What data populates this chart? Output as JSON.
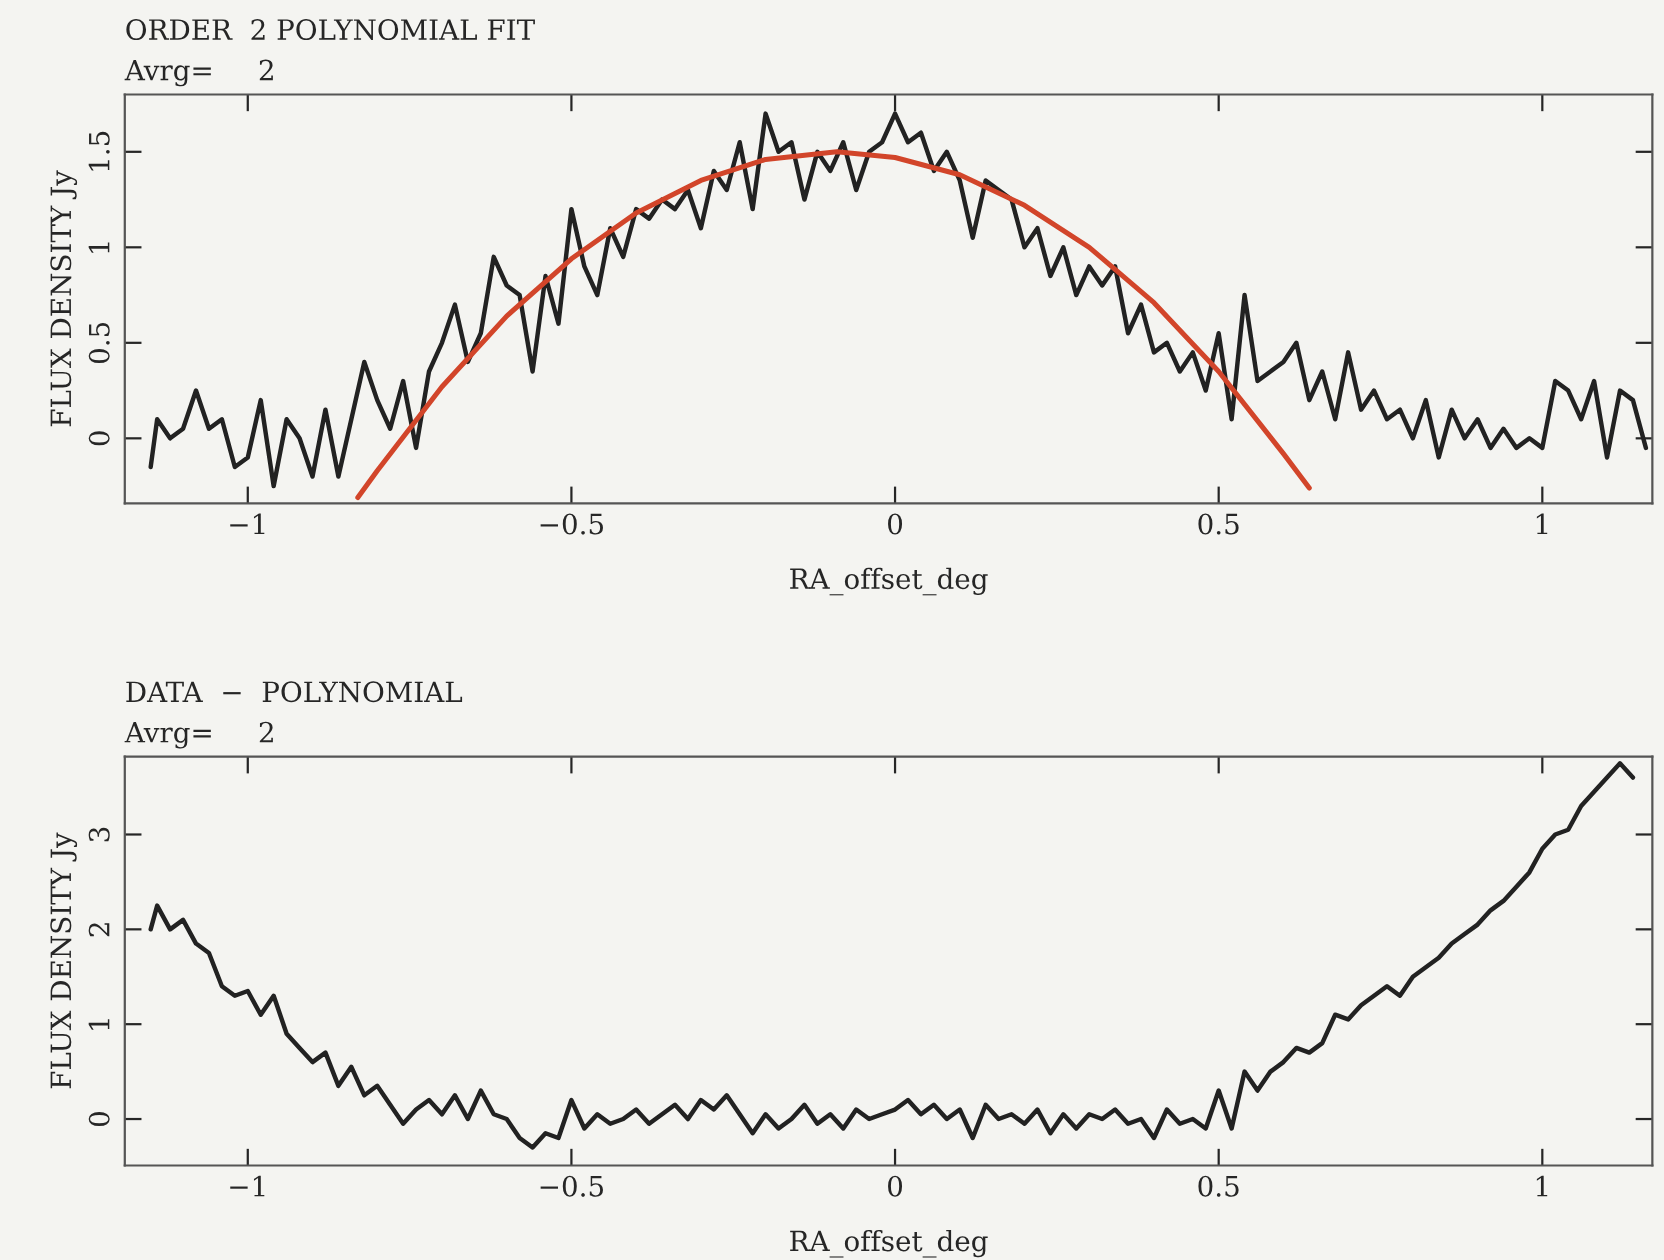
{
  "chart_data": [
    {
      "type": "line",
      "title": "ORDER  2 POLYNOMIAL FIT",
      "subtitle": "Avrg=     2",
      "xlabel": "RA_offset_deg",
      "ylabel": "FLUX DENSITY Jy",
      "xlim": [
        -1.19,
        1.17
      ],
      "ylim": [
        -0.34,
        1.8
      ],
      "xticks": [
        -1,
        -0.5,
        0,
        0.5,
        1
      ],
      "yticks": [
        0,
        0.5,
        1,
        1.5
      ],
      "grid": false,
      "legend": false,
      "marker": "none",
      "line_style": "solid",
      "series": [
        {
          "color": "#222222",
          "x": [
            -1.15,
            -1.14,
            -1.12,
            -1.1,
            -1.08,
            -1.06,
            -1.04,
            -1.02,
            -1.0,
            -0.98,
            -0.96,
            -0.94,
            -0.92,
            -0.9,
            -0.88,
            -0.86,
            -0.84,
            -0.82,
            -0.8,
            -0.78,
            -0.76,
            -0.74,
            -0.72,
            -0.7,
            -0.68,
            -0.66,
            -0.64,
            -0.62,
            -0.6,
            -0.58,
            -0.56,
            -0.54,
            -0.52,
            -0.5,
            -0.48,
            -0.46,
            -0.44,
            -0.42,
            -0.4,
            -0.38,
            -0.36,
            -0.34,
            -0.32,
            -0.3,
            -0.28,
            -0.26,
            -0.24,
            -0.22,
            -0.2,
            -0.18,
            -0.16,
            -0.14,
            -0.12,
            -0.1,
            -0.08,
            -0.06,
            -0.04,
            -0.02,
            0.0,
            0.02,
            0.04,
            0.06,
            0.08,
            0.1,
            0.12,
            0.14,
            0.16,
            0.18,
            0.2,
            0.22,
            0.24,
            0.26,
            0.28,
            0.3,
            0.32,
            0.34,
            0.36,
            0.38,
            0.4,
            0.42,
            0.44,
            0.46,
            0.48,
            0.5,
            0.52,
            0.54,
            0.56,
            0.58,
            0.6,
            0.62,
            0.64,
            0.66,
            0.68,
            0.7,
            0.72,
            0.74,
            0.76,
            0.78,
            0.8,
            0.82,
            0.84,
            0.86,
            0.88,
            0.9,
            0.92,
            0.94,
            0.96,
            0.98,
            1.0,
            1.02,
            1.04,
            1.06,
            1.08,
            1.1,
            1.12,
            1.14,
            1.16
          ],
          "values": [
            -0.15,
            0.1,
            0.0,
            0.05,
            0.25,
            0.05,
            0.1,
            -0.15,
            -0.1,
            0.2,
            -0.25,
            0.1,
            0.0,
            -0.2,
            0.15,
            -0.2,
            0.1,
            0.4,
            0.2,
            0.05,
            0.3,
            -0.05,
            0.35,
            0.5,
            0.7,
            0.4,
            0.55,
            0.95,
            0.8,
            0.75,
            0.35,
            0.85,
            0.6,
            1.2,
            0.9,
            0.75,
            1.1,
            0.95,
            1.2,
            1.15,
            1.25,
            1.2,
            1.3,
            1.1,
            1.4,
            1.3,
            1.55,
            1.2,
            1.7,
            1.5,
            1.55,
            1.25,
            1.5,
            1.4,
            1.55,
            1.3,
            1.5,
            1.55,
            1.7,
            1.55,
            1.6,
            1.4,
            1.5,
            1.35,
            1.05,
            1.35,
            1.3,
            1.25,
            1.0,
            1.1,
            0.85,
            1.0,
            0.75,
            0.9,
            0.8,
            0.9,
            0.55,
            0.7,
            0.45,
            0.5,
            0.35,
            0.45,
            0.25,
            0.55,
            0.1,
            0.75,
            0.3,
            0.35,
            0.4,
            0.5,
            0.2,
            0.35,
            0.1,
            0.45,
            0.15,
            0.25,
            0.1,
            0.15,
            0.0,
            0.2,
            -0.1,
            0.15,
            0.0,
            0.1,
            -0.05,
            0.05,
            -0.05,
            0.0,
            -0.05,
            0.3,
            0.25,
            0.1,
            0.3,
            -0.1,
            0.25,
            0.2,
            -0.05
          ]
        },
        {
          "color": "#d2452a",
          "x": [
            -0.83,
            -0.8,
            -0.7,
            -0.6,
            -0.5,
            -0.4,
            -0.3,
            -0.2,
            -0.09,
            0.0,
            0.1,
            0.2,
            0.3,
            0.4,
            0.5,
            0.6,
            0.64
          ],
          "values": [
            -0.31,
            -0.17,
            0.27,
            0.64,
            0.94,
            1.18,
            1.35,
            1.46,
            1.5,
            1.47,
            1.38,
            1.22,
            1.0,
            0.71,
            0.35,
            -0.08,
            -0.26
          ]
        }
      ]
    },
    {
      "type": "line",
      "title": "DATA  −  POLYNOMIAL",
      "subtitle": "Avrg=     2",
      "xlabel": "RA_offset_deg",
      "ylabel": "FLUX DENSITY Jy",
      "xlim": [
        -1.19,
        1.17
      ],
      "ylim": [
        -0.49,
        3.82
      ],
      "xticks": [
        -1,
        -0.5,
        0,
        0.5,
        1
      ],
      "yticks": [
        0,
        1,
        2,
        3
      ],
      "grid": false,
      "legend": false,
      "marker": "none",
      "line_style": "solid",
      "series": [
        {
          "color": "#222222",
          "x": [
            -1.15,
            -1.14,
            -1.12,
            -1.1,
            -1.08,
            -1.06,
            -1.04,
            -1.02,
            -1.0,
            -0.98,
            -0.96,
            -0.94,
            -0.92,
            -0.9,
            -0.88,
            -0.86,
            -0.84,
            -0.82,
            -0.8,
            -0.78,
            -0.76,
            -0.74,
            -0.72,
            -0.7,
            -0.68,
            -0.66,
            -0.64,
            -0.62,
            -0.6,
            -0.58,
            -0.56,
            -0.54,
            -0.52,
            -0.5,
            -0.48,
            -0.46,
            -0.44,
            -0.42,
            -0.4,
            -0.38,
            -0.36,
            -0.34,
            -0.32,
            -0.3,
            -0.28,
            -0.26,
            -0.24,
            -0.22,
            -0.2,
            -0.18,
            -0.16,
            -0.14,
            -0.12,
            -0.1,
            -0.08,
            -0.06,
            -0.04,
            -0.02,
            0.0,
            0.02,
            0.04,
            0.06,
            0.08,
            0.1,
            0.12,
            0.14,
            0.16,
            0.18,
            0.2,
            0.22,
            0.24,
            0.26,
            0.28,
            0.3,
            0.32,
            0.34,
            0.36,
            0.38,
            0.4,
            0.42,
            0.44,
            0.46,
            0.48,
            0.5,
            0.52,
            0.54,
            0.56,
            0.58,
            0.6,
            0.62,
            0.64,
            0.66,
            0.68,
            0.7,
            0.72,
            0.74,
            0.76,
            0.78,
            0.8,
            0.82,
            0.84,
            0.86,
            0.88,
            0.9,
            0.92,
            0.94,
            0.96,
            0.98,
            1.0,
            1.02,
            1.04,
            1.06,
            1.08,
            1.1,
            1.12,
            1.14
          ],
          "values": [
            2.0,
            2.25,
            2.0,
            2.1,
            1.85,
            1.75,
            1.4,
            1.3,
            1.35,
            1.1,
            1.3,
            0.9,
            0.75,
            0.6,
            0.7,
            0.35,
            0.55,
            0.25,
            0.35,
            0.15,
            -0.05,
            0.1,
            0.2,
            0.05,
            0.25,
            0.0,
            0.3,
            0.05,
            0.0,
            -0.2,
            -0.3,
            -0.15,
            -0.2,
            0.2,
            -0.1,
            0.05,
            -0.05,
            0.0,
            0.1,
            -0.05,
            0.05,
            0.15,
            0.0,
            0.2,
            0.1,
            0.25,
            0.05,
            -0.15,
            0.05,
            -0.1,
            0.0,
            0.15,
            -0.05,
            0.05,
            -0.1,
            0.1,
            0.0,
            0.05,
            0.1,
            0.2,
            0.05,
            0.15,
            0.0,
            0.1,
            -0.2,
            0.15,
            0.0,
            0.05,
            -0.05,
            0.1,
            -0.15,
            0.05,
            -0.1,
            0.05,
            0.0,
            0.1,
            -0.05,
            0.0,
            -0.2,
            0.1,
            -0.05,
            0.0,
            -0.1,
            0.3,
            -0.1,
            0.5,
            0.3,
            0.5,
            0.6,
            0.75,
            0.7,
            0.8,
            1.1,
            1.05,
            1.2,
            1.3,
            1.4,
            1.3,
            1.5,
            1.6,
            1.7,
            1.85,
            1.95,
            2.05,
            2.2,
            2.3,
            2.45,
            2.6,
            2.85,
            3.0,
            3.05,
            3.3,
            3.45,
            3.6,
            3.75,
            3.6
          ]
        }
      ]
    }
  ]
}
